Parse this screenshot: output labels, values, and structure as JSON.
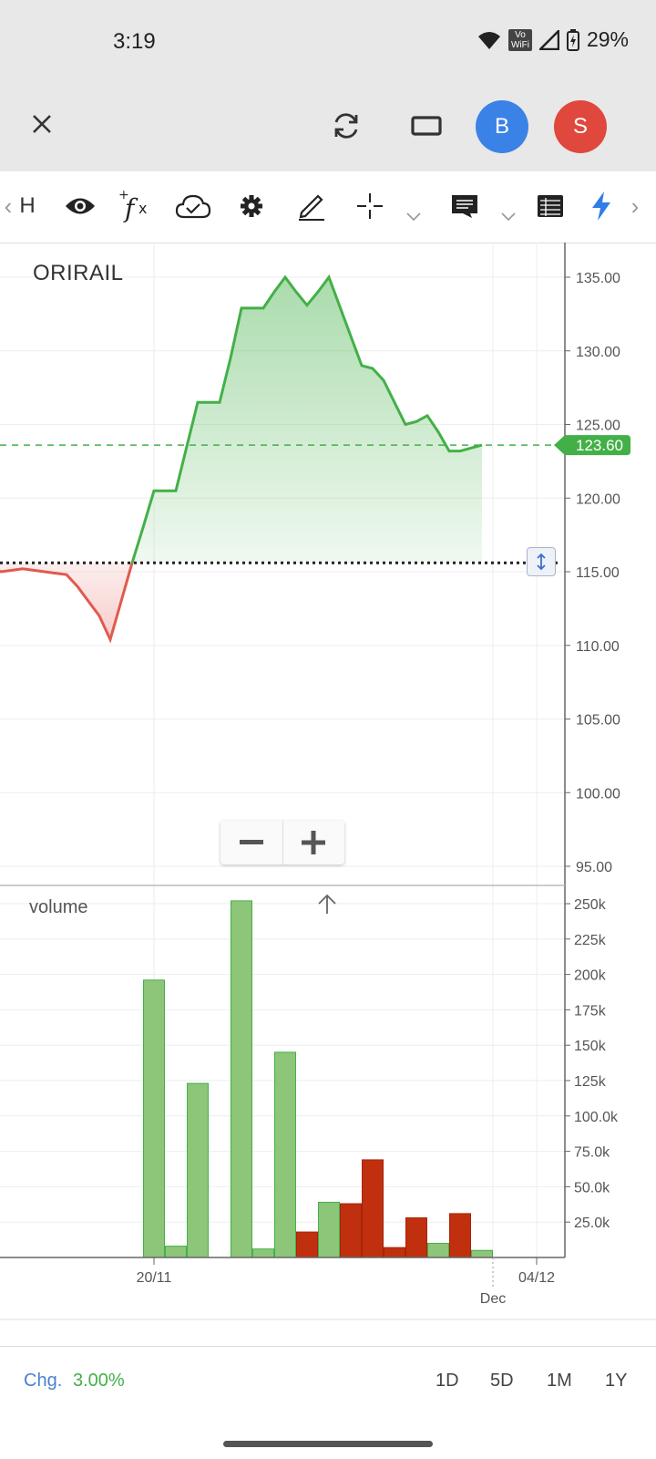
{
  "status": {
    "time": "3:19",
    "vowifi": "Vo\nWiFi",
    "battery": "29%"
  },
  "header": {
    "avatar_b": "B",
    "avatar_s": "S"
  },
  "toolbar": {
    "left_chevron": "‹",
    "right_chevron": "›",
    "partial_label": "H"
  },
  "colors": {
    "up": "#43b047",
    "down": "#e05a50",
    "up_bar": "#8dc579",
    "down_bar": "#c0300f",
    "accent": "#4a7fd4"
  },
  "chart_data": [
    {
      "type": "area",
      "symbol_label": "ORIRAIL",
      "ylim": [
        95,
        137
      ],
      "yticks": [
        "135.00",
        "130.00",
        "125.00",
        "120.00",
        "115.00",
        "110.00",
        "105.00",
        "100.00",
        "95.00"
      ],
      "ytick_values": [
        135,
        130,
        125,
        120,
        115,
        110,
        105,
        100,
        95
      ],
      "baseline": 115.6,
      "last_price_label": "123.60",
      "last_price": 123.6,
      "x": [
        0,
        0.5,
        1,
        1.5,
        2,
        2.5,
        3,
        3.5,
        4,
        4.5,
        5,
        5.5,
        6,
        6.5,
        7,
        7.5,
        8,
        8.5,
        9,
        9.5,
        10,
        10.5,
        11,
        11.5,
        12,
        12.5,
        13,
        13.5,
        14,
        14.5,
        15,
        15.5,
        16,
        16.5,
        17,
        17.5,
        18,
        18.5,
        19,
        19.5,
        20,
        20.5,
        21,
        21.5,
        22,
        22.5
      ],
      "y": [
        115.4,
        115.0,
        115.1,
        115.2,
        115.1,
        115.0,
        114.9,
        114.8,
        114.0,
        113.0,
        112.0,
        110.4,
        113.0,
        115.6,
        118.0,
        120.5,
        120.5,
        120.5,
        123.5,
        126.5,
        126.5,
        126.5,
        129.5,
        132.9,
        132.9,
        132.9,
        134.0,
        135.0,
        134.0,
        133.1,
        134.0,
        135.0,
        133.0,
        131.0,
        129.0,
        128.8,
        128.0,
        126.5,
        125.0,
        125.2,
        125.6,
        124.5,
        123.2,
        123.2,
        123.4,
        123.6
      ]
    },
    {
      "type": "bar",
      "panel_label": "volume",
      "ylim": [
        0,
        260000
      ],
      "yticks": [
        "250k",
        "225k",
        "200k",
        "175k",
        "150k",
        "125k",
        "100.0k",
        "75.0k",
        "50.0k",
        "25.0k"
      ],
      "ytick_values": [
        250000,
        225000,
        200000,
        175000,
        150000,
        125000,
        100000,
        75000,
        50000,
        25000
      ],
      "x_tick_labels": [
        "20/11",
        "Dec",
        "04/12"
      ],
      "bars": [
        {
          "x": 7.5,
          "value": 196000,
          "dir": "up"
        },
        {
          "x": 8.5,
          "value": 8000,
          "dir": "up"
        },
        {
          "x": 9.5,
          "value": 123000,
          "dir": "up"
        },
        {
          "x": 11.5,
          "value": 252000,
          "dir": "up"
        },
        {
          "x": 12.5,
          "value": 6000,
          "dir": "up"
        },
        {
          "x": 13.5,
          "value": 145000,
          "dir": "up"
        },
        {
          "x": 14.5,
          "value": 18000,
          "dir": "down"
        },
        {
          "x": 15.5,
          "value": 39000,
          "dir": "up"
        },
        {
          "x": 16.5,
          "value": 38000,
          "dir": "down"
        },
        {
          "x": 17.5,
          "value": 69000,
          "dir": "down"
        },
        {
          "x": 18.5,
          "value": 7000,
          "dir": "down"
        },
        {
          "x": 19.5,
          "value": 28000,
          "dir": "down"
        },
        {
          "x": 20.5,
          "value": 10000,
          "dir": "up"
        },
        {
          "x": 21.5,
          "value": 31000,
          "dir": "down"
        },
        {
          "x": 22.5,
          "value": 5000,
          "dir": "up"
        }
      ]
    }
  ],
  "footer": {
    "chg_label": "Chg.",
    "chg_value": "3.00%",
    "ranges": [
      "1D",
      "5D",
      "1M",
      "1Y"
    ]
  }
}
